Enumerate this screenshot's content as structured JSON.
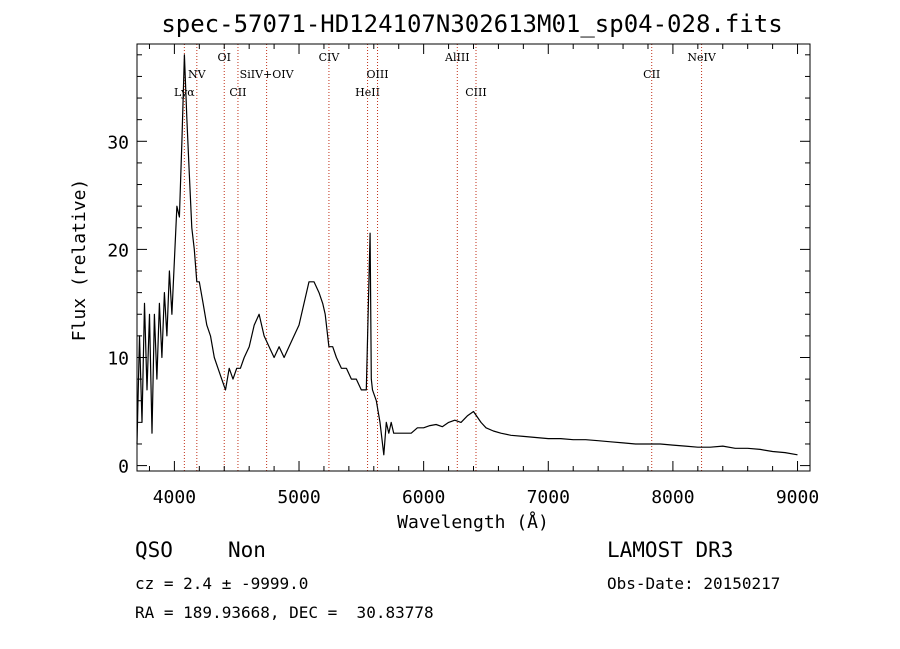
{
  "chart_data": {
    "type": "line",
    "title": "spec-57071-HD124107N302613M01_sp04-028.fits",
    "xlabel": "Wavelength (Å)",
    "ylabel": "Flux (relative)",
    "xlim": [
      3700,
      9100
    ],
    "ylim": [
      -0.5,
      39
    ],
    "xticks": [
      4000,
      5000,
      6000,
      7000,
      8000,
      9000
    ],
    "yticks": [
      0,
      10,
      20,
      30
    ],
    "grid": false,
    "series": [
      {
        "x": [
          3700,
          3720,
          3740,
          3760,
          3780,
          3800,
          3820,
          3840,
          3860,
          3880,
          3900,
          3920,
          3940,
          3960,
          3980,
          4000,
          4020,
          4040,
          4060,
          4080,
          4100,
          4120,
          4140,
          4160,
          4180,
          4200,
          4230,
          4260,
          4290,
          4320,
          4350,
          4380,
          4410,
          4440,
          4470,
          4500,
          4530,
          4560,
          4600,
          4640,
          4680,
          4720,
          4760,
          4800,
          4840,
          4880,
          4920,
          4960,
          5000,
          5040,
          5080,
          5120,
          5160,
          5190,
          5210,
          5240,
          5270,
          5300,
          5340,
          5380,
          5420,
          5460,
          5500,
          5540,
          5570,
          5580,
          5590,
          5620,
          5650,
          5680,
          5700,
          5720,
          5740,
          5760,
          5800,
          5850,
          5900,
          5950,
          6000,
          6050,
          6100,
          6150,
          6200,
          6250,
          6300,
          6350,
          6400,
          6430,
          6460,
          6500,
          6560,
          6620,
          6700,
          6800,
          6900,
          7000,
          7100,
          7200,
          7300,
          7400,
          7500,
          7600,
          7700,
          7800,
          7900,
          8000,
          8100,
          8200,
          8300,
          8400,
          8500,
          8600,
          8700,
          8800,
          8900,
          9000
        ],
        "y": [
          2,
          12,
          4,
          15,
          7,
          14,
          3,
          14,
          8,
          15,
          10,
          16,
          12,
          18,
          14,
          19,
          24,
          23,
          30,
          38,
          32,
          27,
          22,
          20,
          17,
          17,
          15,
          13,
          12,
          10,
          9,
          8,
          7,
          9,
          8,
          9,
          9,
          10,
          11,
          13,
          14,
          12,
          11,
          10,
          11,
          10,
          11,
          12,
          13,
          15,
          17,
          17,
          16,
          15,
          14,
          11,
          11,
          10,
          9,
          9,
          8,
          8,
          7,
          7,
          21.5,
          8,
          7,
          6,
          4,
          1,
          4,
          3,
          4,
          3,
          3,
          3,
          3,
          3.5,
          3.5,
          3.7,
          3.8,
          3.6,
          4,
          4.2,
          4,
          4.6,
          5,
          4.5,
          4,
          3.5,
          3.2,
          3,
          2.8,
          2.7,
          2.6,
          2.5,
          2.5,
          2.4,
          2.4,
          2.3,
          2.2,
          2.1,
          2,
          2,
          2,
          1.9,
          1.8,
          1.7,
          1.7,
          1.8,
          1.6,
          1.6,
          1.5,
          1.3,
          1.2,
          1
        ]
      }
    ],
    "lines": [
      {
        "name": "Lyα",
        "x": 4080,
        "row": 3
      },
      {
        "name": "NV",
        "x": 4180,
        "row": 2
      },
      {
        "name": "OI",
        "x": 4400,
        "row": 1
      },
      {
        "name": "CII",
        "x": 4510,
        "row": 3
      },
      {
        "name": "SiIV+OIV",
        "x": 4740,
        "row": 2
      },
      {
        "name": "CIV",
        "x": 5240,
        "row": 1
      },
      {
        "name": "HeII",
        "x": 5550,
        "row": 3
      },
      {
        "name": "OIII",
        "x": 5630,
        "row": 2
      },
      {
        "name": "AlIII",
        "x": 6270,
        "row": 1
      },
      {
        "name": "CIII",
        "x": 6420,
        "row": 3
      },
      {
        "name": "CII",
        "x": 7830,
        "row": 2
      },
      {
        "name": "NeIV",
        "x": 8230,
        "row": 1
      }
    ],
    "line_color": "#c03018"
  },
  "info": {
    "class": "QSO",
    "subclass": "Non",
    "survey": "LAMOST DR3",
    "cz": "cz = 2.4 ± -9999.0",
    "obs_date": "Obs-Date: 20150217",
    "radec": "RA = 189.93668, DEC =  30.83778"
  }
}
